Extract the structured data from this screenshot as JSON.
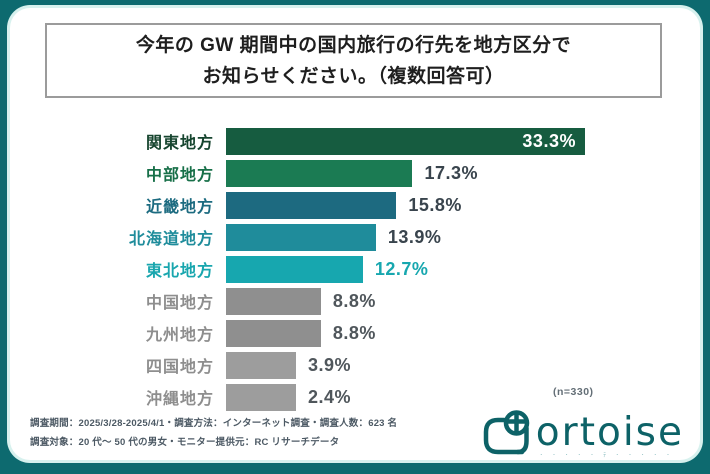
{
  "frame": {
    "bg_color": "#0D6A6F",
    "card_edge_color": "#D7F1EE"
  },
  "title": {
    "line1": "今年の GW 期間中の国内旅行の行先を地方区分で",
    "line2": "お知らせください。（複数回答可）"
  },
  "chart_data": {
    "type": "bar",
    "orientation": "horizontal",
    "title": "今年の GW 期間中の国内旅行の行先を地方区分でお知らせください。（複数回答可）",
    "categories": [
      "関東地方",
      "中部地方",
      "近畿地方",
      "北海道地方",
      "東北地方",
      "中国地方",
      "九州地方",
      "四国地方",
      "沖縄地方"
    ],
    "values": [
      33.3,
      17.3,
      15.8,
      13.9,
      12.7,
      8.8,
      8.8,
      3.9,
      2.4
    ],
    "value_labels": [
      "33.3%",
      "17.3%",
      "15.8%",
      "13.9%",
      "12.7%",
      "8.8%",
      "8.8%",
      "3.9%",
      "2.4%"
    ],
    "bar_colors": [
      "#165C40",
      "#1B7B53",
      "#1D6A80",
      "#1F8C9B",
      "#17A7AF",
      "#8F8F8F",
      "#8F8F8F",
      "#9D9D9D",
      "#9D9D9D"
    ],
    "category_label_colors": [
      "#16452F",
      "#187049",
      "#1C6B80",
      "#1F8C9B",
      "#19A6AE",
      "#8E8E8E",
      "#8E8E8E",
      "#8E8E8E",
      "#8E8E8E"
    ],
    "value_label_colors": [
      "#FFFFFF",
      "#39444D",
      "#39444D",
      "#39444D",
      "#17A7AF",
      "#4F565B",
      "#4F565B",
      "#4F565B",
      "#4F565B"
    ],
    "value_label_inside": [
      true,
      false,
      false,
      false,
      false,
      false,
      false,
      false,
      false
    ],
    "xlim": [
      0,
      35
    ],
    "grid": false,
    "legend": false,
    "sample_note": "(n=330)"
  },
  "footer": {
    "line1": "調査期間：2025/3/28-2025/4/1・調査方法：インターネット調査・調査人数：623 名",
    "line2": "調査対象：20 代～ 50 代の男女・モニター提供元：RC リサーチデータ"
  },
  "logo": {
    "brand": "tortoise",
    "wordmark_text": "ortoise",
    "tagline_glyphs": "･ ･ ･ ･ ･ ﾃ ･ ･ ･ ･ ･",
    "color": "#0D6267"
  }
}
